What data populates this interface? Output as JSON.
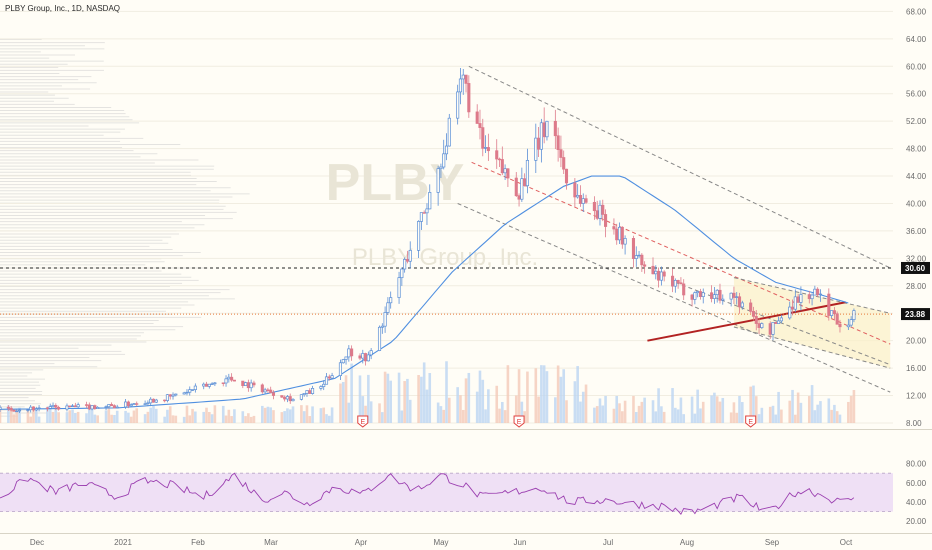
{
  "header": {
    "title": "PLBY Group, Inc., 1D, NASDAQ"
  },
  "watermark": {
    "ticker": "PLBY",
    "company": "PLBY Group, Inc."
  },
  "colors": {
    "background": "#fffdf6",
    "up_candle": "#5a8ed6",
    "down_candle": "#dd7a8a",
    "ma_line": "#4f8fe0",
    "rsi_line": "#9b3fb0",
    "rsi_band": "#efe0f5",
    "trend_red": "#b22222",
    "channel_dash": "#888888",
    "channel_red": "#e06060",
    "channel_fill": "#fbefc8",
    "last_price_line": "#e87a3a",
    "earnings_marker": "#e0413e"
  },
  "price_axis": {
    "ticks": [
      "68.00",
      "64.00",
      "60.00",
      "56.00",
      "52.00",
      "48.00",
      "44.00",
      "40.00",
      "36.00",
      "32.00",
      "28.00",
      "24.00",
      "20.00",
      "16.00",
      "12.00",
      "8.00"
    ],
    "labels": {
      "resistance": "30.60",
      "last": "23.88"
    }
  },
  "rsi_axis": {
    "ticks": [
      "80.00",
      "60.00",
      "40.00",
      "20.00"
    ]
  },
  "time_axis": {
    "ticks": [
      "Dec",
      "2021",
      "Feb",
      "Mar",
      "Apr",
      "May",
      "Jun",
      "Jul",
      "Aug",
      "Sep",
      "Oct"
    ]
  },
  "earnings": {
    "label": "E"
  },
  "chart_data": {
    "type": "candlestick",
    "title": "PLBY Group, Inc., 1D, NASDAQ",
    "y_range": [
      8,
      70
    ],
    "rsi_range": [
      12,
      90
    ],
    "resistance_level": 30.6,
    "last_price": 23.88,
    "price_keypoints": [
      [
        "2020-11-20",
        10.0
      ],
      [
        "2020-12-15",
        10.3
      ],
      [
        "2021-01-01",
        10.5
      ],
      [
        "2021-01-20",
        11.8
      ],
      [
        "2021-02-10",
        14.5
      ],
      [
        "2021-02-20",
        13.2
      ],
      [
        "2021-03-05",
        11.5
      ],
      [
        "2021-03-15",
        13.2
      ],
      [
        "2021-03-25",
        18.5
      ],
      [
        "2021-04-01",
        17.5
      ],
      [
        "2021-04-10",
        27.0
      ],
      [
        "2021-04-22",
        40.0
      ],
      [
        "2021-05-01",
        52.0
      ],
      [
        "2021-05-05",
        58.0
      ],
      [
        "2021-05-12",
        48.0
      ],
      [
        "2021-05-25",
        42.0
      ],
      [
        "2021-06-05",
        53.0
      ],
      [
        "2021-06-12",
        42.0
      ],
      [
        "2021-06-25",
        38.0
      ],
      [
        "2021-07-10",
        30.0
      ],
      [
        "2021-07-25",
        27.0
      ],
      [
        "2021-08-10",
        26.5
      ],
      [
        "2021-08-22",
        21.0
      ],
      [
        "2021-09-01",
        26.0
      ],
      [
        "2021-09-08",
        27.0
      ],
      [
        "2021-09-18",
        22.0
      ],
      [
        "2021-09-22",
        23.88
      ]
    ],
    "ma_keypoints": [
      [
        "2020-11-20",
        10.0
      ],
      [
        "2021-01-01",
        10.2
      ],
      [
        "2021-02-15",
        11.5
      ],
      [
        "2021-03-20",
        14.5
      ],
      [
        "2021-04-10",
        20.0
      ],
      [
        "2021-05-01",
        30.0
      ],
      [
        "2021-05-20",
        37.0
      ],
      [
        "2021-06-10",
        42.5
      ],
      [
        "2021-06-20",
        44.0
      ],
      [
        "2021-07-01",
        44.0
      ],
      [
        "2021-07-20",
        39.0
      ],
      [
        "2021-08-10",
        32.0
      ],
      [
        "2021-08-25",
        28.5
      ],
      [
        "2021-09-10",
        26.7
      ],
      [
        "2021-09-20",
        25.5
      ]
    ],
    "rsi_keypoints": [
      [
        "2020-11-20",
        45
      ],
      [
        "2020-11-30",
        65
      ],
      [
        "2020-12-10",
        50
      ],
      [
        "2020-12-20",
        60
      ],
      [
        "2021-01-01",
        45
      ],
      [
        "2021-01-10",
        62
      ],
      [
        "2021-01-20",
        58
      ],
      [
        "2021-02-01",
        45
      ],
      [
        "2021-02-12",
        68
      ],
      [
        "2021-02-22",
        42
      ],
      [
        "2021-03-02",
        50
      ],
      [
        "2021-03-10",
        38
      ],
      [
        "2021-03-20",
        56
      ],
      [
        "2021-03-30",
        48
      ],
      [
        "2021-04-08",
        68
      ],
      [
        "2021-04-18",
        52
      ],
      [
        "2021-04-27",
        68
      ],
      [
        "2021-05-05",
        58
      ],
      [
        "2021-05-12",
        45
      ],
      [
        "2021-05-22",
        50
      ],
      [
        "2021-06-02",
        55
      ],
      [
        "2021-06-12",
        40
      ],
      [
        "2021-06-25",
        42
      ],
      [
        "2021-07-05",
        38
      ],
      [
        "2021-07-15",
        36
      ],
      [
        "2021-07-25",
        28
      ],
      [
        "2021-08-05",
        38
      ],
      [
        "2021-08-12",
        45
      ],
      [
        "2021-08-22",
        28
      ],
      [
        "2021-09-01",
        50
      ],
      [
        "2021-09-06",
        52
      ],
      [
        "2021-09-15",
        42
      ],
      [
        "2021-09-19",
        38
      ],
      [
        "2021-09-22",
        46
      ]
    ],
    "earnings_dates": [
      "2021-03-30",
      "2021-05-25",
      "2021-08-16"
    ],
    "trendlines": {
      "channel_upper": [
        [
          "2021-05-07",
          60.0
        ],
        [
          "2021-10-05",
          30.6
        ]
      ],
      "channel_mid": [
        [
          "2021-05-08",
          46.0
        ],
        [
          "2021-10-05",
          19.5
        ]
      ],
      "channel_lower": [
        [
          "2021-05-03",
          40.0
        ],
        [
          "2021-10-05",
          12.5
        ]
      ],
      "channel_extra": [
        [
          "2021-07-20",
          28.5
        ],
        [
          "2021-10-05",
          16.5
        ]
      ],
      "trend_red": [
        [
          "2021-07-10",
          20.0
        ],
        [
          "2021-09-19",
          25.6
        ]
      ],
      "small_channel_top": [
        [
          "2021-08-10",
          29.2
        ],
        [
          "2021-10-05",
          24.0
        ]
      ],
      "small_channel_bottom": [
        [
          "2021-08-10",
          22.0
        ],
        [
          "2021-10-05",
          16.0
        ]
      ]
    }
  }
}
